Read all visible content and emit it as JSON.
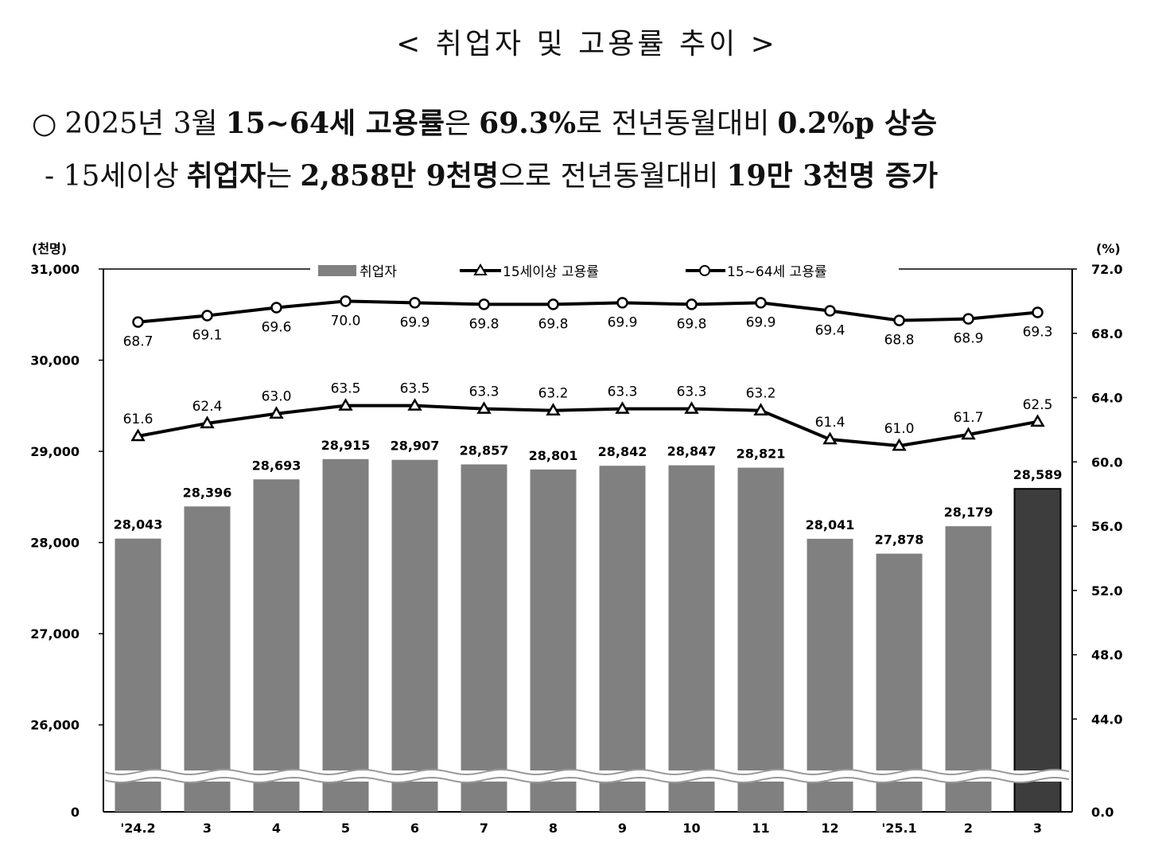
{
  "title": "< 취업자 및 고용률 추이 >",
  "summary_line1": {
    "bullet": "○",
    "p1": "2025년 3월",
    "p2_bold": "15~64세 고용률",
    "p3": "은",
    "p4_bold": "69.3%",
    "p5": "로 전년동월대비",
    "p6_bold": "0.2%p 상승"
  },
  "summary_line2": {
    "p1": "- 15세이상",
    "p2_bold": "취업자",
    "p3": "는",
    "p4_bold": "2,858만 9천명",
    "p5": "으로 전년동월대비",
    "p6_bold": "19만 3천명 증가"
  },
  "chart_data": {
    "type": "bar",
    "left_unit": "(천명)",
    "right_unit": "(%)",
    "categories": [
      "'24.2",
      "3",
      "4",
      "5",
      "6",
      "7",
      "8",
      "9",
      "10",
      "11",
      "12",
      "'25.1",
      "2",
      "3"
    ],
    "left_ticks": [
      "31,000",
      "30,000",
      "29,000",
      "28,000",
      "27,000",
      "26,000",
      "0"
    ],
    "left_tick_values": [
      31000,
      30000,
      29000,
      28000,
      27000,
      26000
    ],
    "left_ylim": [
      25500,
      31000
    ],
    "right_ticks": [
      "72.0",
      "68.0",
      "64.0",
      "60.0",
      "56.0",
      "52.0",
      "48.0",
      "44.0",
      "0.0"
    ],
    "right_tick_values": [
      72,
      68,
      64,
      60,
      56,
      52,
      48,
      44
    ],
    "right_ylim": [
      40.8,
      72
    ],
    "legend": [
      "취업자",
      "15세이상 고용률",
      "15~64세 고용률"
    ],
    "series": [
      {
        "name": "취업자",
        "axis": "left",
        "kind": "bar",
        "values": [
          28043,
          28396,
          28693,
          28915,
          28907,
          28857,
          28801,
          28842,
          28847,
          28821,
          28041,
          27878,
          28179,
          28589
        ],
        "labels": [
          "28,043",
          "28,396",
          "28,693",
          "28,915",
          "28,907",
          "28,857",
          "28,801",
          "28,842",
          "28,847",
          "28,821",
          "28,041",
          "27,878",
          "28,179",
          "28,589"
        ],
        "color": "#808080",
        "highlight_color": "#3d3d3d",
        "highlight_index": 13
      },
      {
        "name": "15세이상 고용률",
        "axis": "right",
        "kind": "line",
        "marker": "triangle",
        "values": [
          61.6,
          62.4,
          63.0,
          63.5,
          63.5,
          63.3,
          63.2,
          63.3,
          63.3,
          63.2,
          61.4,
          61.0,
          61.7,
          62.5
        ],
        "labels": [
          "61.6",
          "62.4",
          "63.0",
          "63.5",
          "63.5",
          "63.3",
          "63.2",
          "63.3",
          "63.3",
          "63.2",
          "61.4",
          "61.0",
          "61.7",
          "62.5"
        ]
      },
      {
        "name": "15~64세 고용률",
        "axis": "right",
        "kind": "line",
        "marker": "circle",
        "values": [
          68.7,
          69.1,
          69.6,
          70.0,
          69.9,
          69.8,
          69.8,
          69.9,
          69.8,
          69.9,
          69.4,
          68.8,
          68.9,
          69.3
        ],
        "labels": [
          "68.7",
          "69.1",
          "69.6",
          "70.0",
          "69.9",
          "69.8",
          "69.8",
          "69.9",
          "69.8",
          "69.9",
          "69.4",
          "68.8",
          "68.9",
          "69.3"
        ]
      }
    ]
  }
}
